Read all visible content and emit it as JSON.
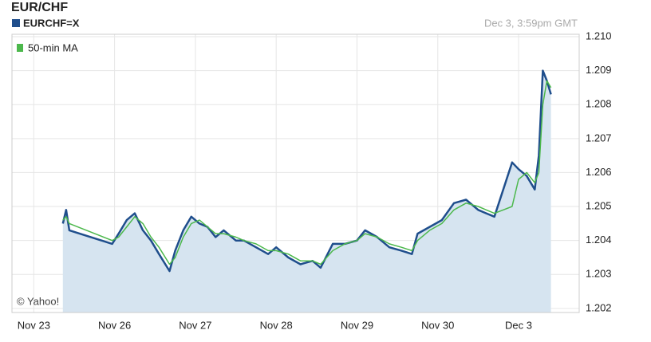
{
  "chart_data": {
    "type": "line",
    "title": "EUR/CHF",
    "timestamp": "Dec 3, 3:59pm GMT",
    "credit": "© Yahoo!",
    "x": [
      0.36,
      0.4,
      0.44,
      0.97,
      1.05,
      1.15,
      1.25,
      1.35,
      1.45,
      1.55,
      1.68,
      1.75,
      1.85,
      1.95,
      2.05,
      2.15,
      2.25,
      2.35,
      2.5,
      2.6,
      2.75,
      2.9,
      3.0,
      3.15,
      3.3,
      3.45,
      3.55,
      3.7,
      3.85,
      4.0,
      4.1,
      4.25,
      4.4,
      4.55,
      4.68,
      4.75,
      4.9,
      5.05,
      5.2,
      5.35,
      5.5,
      5.6,
      5.7,
      5.92,
      6.0,
      6.1,
      6.2,
      6.25,
      6.3,
      6.35,
      6.4
    ],
    "series": [
      {
        "name": "EURCHF=X",
        "color": "#1f4e8c",
        "area_color": "#d6e4f0",
        "values": [
          1.2045,
          1.2049,
          1.2043,
          1.2039,
          1.2042,
          1.2046,
          1.2048,
          1.2043,
          1.204,
          1.2036,
          1.2031,
          1.2037,
          1.2043,
          1.2047,
          1.2045,
          1.2044,
          1.2041,
          1.2043,
          1.204,
          1.204,
          1.2038,
          1.2036,
          1.2038,
          1.2035,
          1.2033,
          1.2034,
          1.2032,
          1.2039,
          1.2039,
          1.204,
          1.2043,
          1.2041,
          1.2038,
          1.2037,
          1.2036,
          1.2042,
          1.2044,
          1.2046,
          1.2051,
          1.2052,
          1.2049,
          1.2048,
          1.2047,
          1.2063,
          1.2061,
          1.2059,
          1.2055,
          1.2065,
          1.209,
          1.2087,
          1.2083
        ]
      },
      {
        "name": "50-min MA",
        "color": "#4cb84c",
        "values": [
          1.2046,
          1.2047,
          1.2045,
          1.204,
          1.2041,
          1.2044,
          1.2047,
          1.2045,
          1.2041,
          1.2038,
          1.2033,
          1.2035,
          1.2041,
          1.2045,
          1.2046,
          1.2044,
          1.2042,
          1.2042,
          1.2041,
          1.204,
          1.2039,
          1.2037,
          1.2037,
          1.2036,
          1.2034,
          1.2034,
          1.2033,
          1.2037,
          1.2039,
          1.204,
          1.2042,
          1.2041,
          1.2039,
          1.2038,
          1.2037,
          1.204,
          1.2043,
          1.2045,
          1.2049,
          1.2051,
          1.205,
          1.2049,
          1.2048,
          1.205,
          1.2058,
          1.206,
          1.2057,
          1.206,
          1.208,
          1.2087,
          1.2085
        ]
      }
    ],
    "xlim": [
      -0.27,
      6.75
    ],
    "xticks": [
      {
        "value": 0,
        "label": "Nov 23"
      },
      {
        "value": 1,
        "label": "Nov 26"
      },
      {
        "value": 2,
        "label": "Nov 27"
      },
      {
        "value": 3,
        "label": "Nov 28"
      },
      {
        "value": 4,
        "label": "Nov 29"
      },
      {
        "value": 5,
        "label": "Nov 30"
      },
      {
        "value": 6,
        "label": "Dec  3"
      }
    ],
    "ylim": [
      1.20188,
      1.21007
    ],
    "yticks": [
      1.202,
      1.203,
      1.204,
      1.205,
      1.206,
      1.207,
      1.208,
      1.209,
      {
        "value": 1.21,
        "label": "1.210"
      }
    ],
    "grid": true
  }
}
